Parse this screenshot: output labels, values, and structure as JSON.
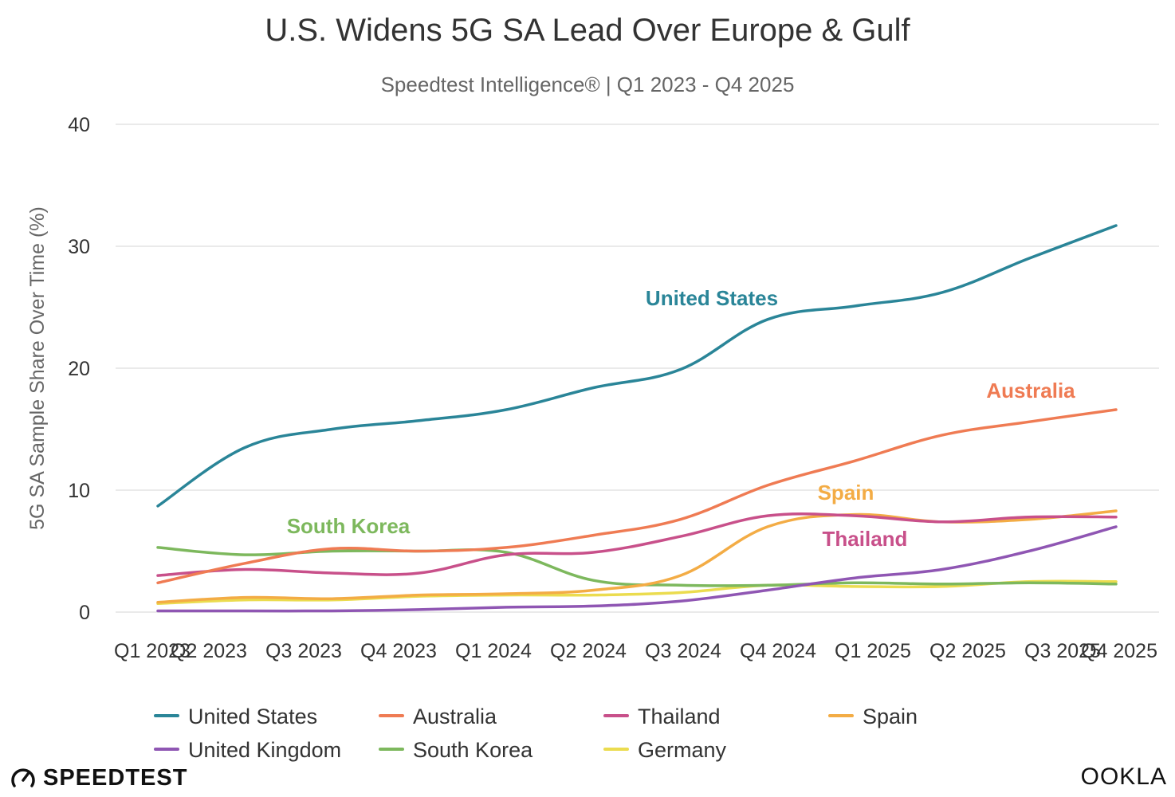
{
  "chart_data": {
    "type": "line",
    "title": "U.S. Widens 5G SA Lead Over Europe & Gulf",
    "subtitle": "Speedtest Intelligence® | Q1 2023 - Q4 2025",
    "ylabel": "5G SA Sample Share Over Time (%)",
    "xlabel": "",
    "ylim": [
      0,
      40
    ],
    "yticks": [
      "0",
      "10",
      "20",
      "30",
      "40"
    ],
    "categories": [
      "Q1 2023",
      "Q2 2023",
      "Q3 2023",
      "Q4 2023",
      "Q1 2024",
      "Q2 2024",
      "Q3 2024",
      "Q4 2024",
      "Q1 2025",
      "Q2 2025",
      "Q3 2025",
      "Q4 2025"
    ],
    "xtick_labels": [
      "Q1 2023",
      "Q2 2023",
      "Q3 2023",
      "Q4 2023",
      "Q1 2024",
      "Q2 2024",
      "Q3 2024",
      "Q4 2024",
      "Q1 2025",
      "Q2 2025",
      "Q3 2025",
      "Q4 2025"
    ],
    "series": [
      {
        "name": "United States",
        "color": "#2a8598",
        "values": [
          8.7,
          13.5,
          15.0,
          15.7,
          16.6,
          18.4,
          19.9,
          24.0,
          25.1,
          26.2,
          29.0,
          31.7
        ]
      },
      {
        "name": "Australia",
        "color": "#ef7b53",
        "values": [
          2.4,
          4.0,
          5.2,
          5.0,
          5.3,
          6.3,
          7.6,
          10.4,
          12.4,
          14.5,
          15.6,
          16.6
        ]
      },
      {
        "name": "Thailand",
        "color": "#c8508a",
        "values": [
          3.0,
          3.5,
          3.2,
          3.2,
          4.7,
          4.9,
          6.2,
          7.9,
          7.9,
          7.4,
          7.8,
          7.8
        ]
      },
      {
        "name": "Spain",
        "color": "#f3ac45",
        "values": [
          0.8,
          1.2,
          1.1,
          1.4,
          1.5,
          1.8,
          3.0,
          7.0,
          8.0,
          7.4,
          7.6,
          8.3
        ]
      },
      {
        "name": "United Kingdom",
        "color": "#8f56b3",
        "values": [
          0.1,
          0.1,
          0.1,
          0.2,
          0.4,
          0.5,
          0.9,
          1.8,
          2.8,
          3.5,
          5.0,
          7.0
        ]
      },
      {
        "name": "South Korea",
        "color": "#7db85d",
        "values": [
          5.3,
          4.7,
          5.0,
          5.0,
          4.9,
          2.6,
          2.2,
          2.2,
          2.4,
          2.3,
          2.4,
          2.3
        ]
      },
      {
        "name": "Germany",
        "color": "#ebdc4f",
        "values": [
          0.7,
          1.0,
          1.0,
          1.3,
          1.4,
          1.4,
          1.6,
          2.2,
          2.1,
          2.1,
          2.5,
          2.5
        ]
      }
    ],
    "annotations": [
      {
        "text": "United States",
        "color": "#2a8598"
      },
      {
        "text": "Australia",
        "color": "#ef7b53"
      },
      {
        "text": "Spain",
        "color": "#f3ac45"
      },
      {
        "text": "Thailand",
        "color": "#c8508a"
      },
      {
        "text": "South Korea",
        "color": "#7db85d"
      }
    ],
    "legend_position": "bottom",
    "grid": true
  },
  "branding": {
    "left_logo": "SPEEDTEST",
    "right_logo": "OOKLA"
  }
}
